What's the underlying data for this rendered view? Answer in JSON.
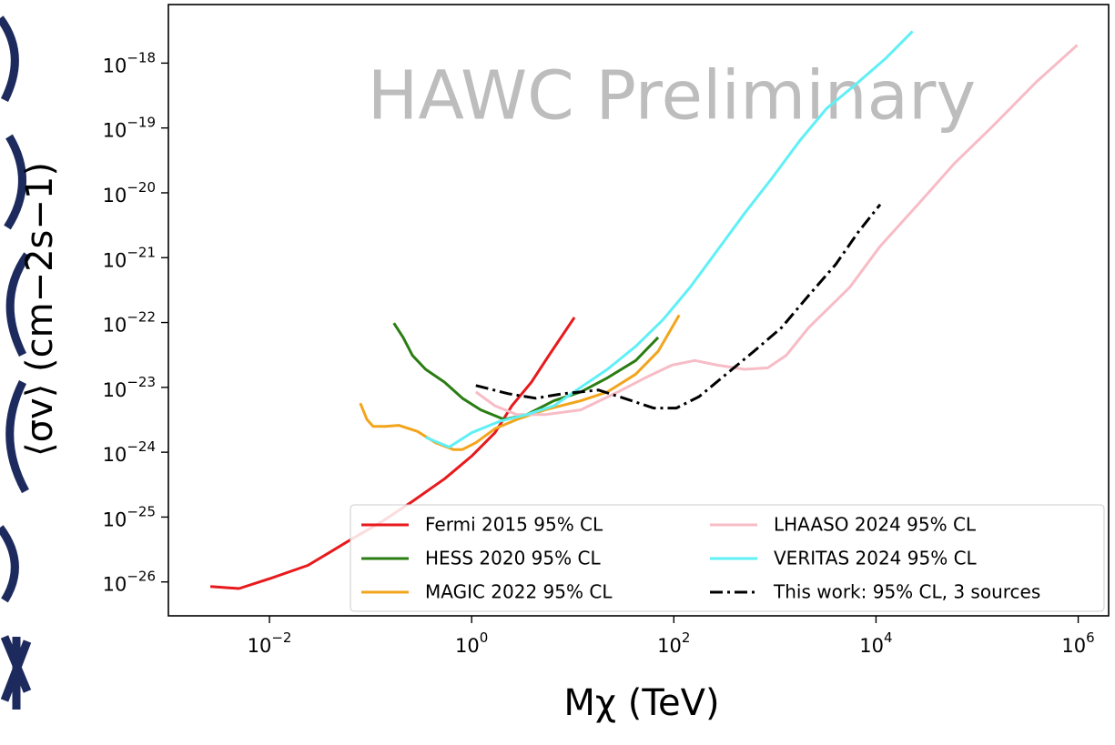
{
  "chart_data": {
    "type": "line",
    "annotation": "HAWC Preliminary",
    "xlabel": "Mχ (TeV)",
    "ylabel": "⟨σv⟩ (cm−2s−1)",
    "xscale": "log",
    "yscale": "log",
    "xlim": [
      0.001,
      2000000
    ],
    "ylim": [
      3e-27,
      8e-18
    ],
    "xticks": [
      {
        "value": 0.01,
        "label": "10−2"
      },
      {
        "value": 1,
        "label": "100"
      },
      {
        "value": 100,
        "label": "102"
      },
      {
        "value": 10000,
        "label": "104"
      },
      {
        "value": 1000000,
        "label": "106"
      }
    ],
    "yticks": [
      {
        "value": 1e-26,
        "label": "10−26"
      },
      {
        "value": 1e-25,
        "label": "10−25"
      },
      {
        "value": 1e-24,
        "label": "10−24"
      },
      {
        "value": 1e-23,
        "label": "10−23"
      },
      {
        "value": 1e-22,
        "label": "10−22"
      },
      {
        "value": 1e-21,
        "label": "10−21"
      },
      {
        "value": 1e-20,
        "label": "10−20"
      },
      {
        "value": 1e-19,
        "label": "10−19"
      },
      {
        "value": 1e-18,
        "label": "10−18"
      }
    ],
    "legend": "lower right",
    "series": [
      {
        "name": "Fermi 2015 95% CL",
        "color": "#e8191c",
        "dash": "solid",
        "x": [
          0.0026,
          0.005,
          0.0105,
          0.024,
          0.04,
          0.067,
          0.126,
          0.26,
          0.54,
          1,
          1.7,
          2.5,
          3.9,
          5.8,
          10.4
        ],
        "values": [
          8.5e-27,
          7.9e-27,
          1.15e-26,
          1.8e-26,
          2.9e-26,
          4.7e-26,
          8.3e-26,
          1.75e-25,
          3.9e-25,
          8.7e-25,
          2e-24,
          5.2e-24,
          1.2e-23,
          3.1e-23,
          1.2e-22
        ]
      },
      {
        "name": "HESS 2020 95% CL",
        "color": "#2a7d12",
        "dash": "solid",
        "x": [
          0.17,
          0.21,
          0.26,
          0.35,
          0.54,
          0.81,
          1.23,
          2.1,
          3.5,
          6.5,
          12,
          22,
          42,
          70
        ],
        "values": [
          9.8e-23,
          5.9e-23,
          3.1e-23,
          1.9e-23,
          1.2e-23,
          6.8e-24,
          4.5e-24,
          3.2e-24,
          3.8e-24,
          6.2e-24,
          8.5e-24,
          1.4e-23,
          2.6e-23,
          5.9e-23
        ]
      },
      {
        "name": "MAGIC 2022 95% CL",
        "color": "#f2a51c",
        "dash": "solid",
        "x": [
          0.079,
          0.092,
          0.106,
          0.14,
          0.19,
          0.29,
          0.44,
          0.66,
          0.81,
          1.1,
          1.7,
          2.8,
          5.3,
          12,
          22,
          42,
          70,
          113
        ],
        "values": [
          5.7e-24,
          3.2e-24,
          2.5e-24,
          2.5e-24,
          2.6e-24,
          2.1e-24,
          1.4e-24,
          1.1e-24,
          1.1e-24,
          1.4e-24,
          2.3e-24,
          3.2e-24,
          4.5e-24,
          6.2e-24,
          8.5e-24,
          1.6e-23,
          3.6e-23,
          1.3e-22
        ]
      },
      {
        "name": "LHAASO 2024 95% CL",
        "color": "#f7bcc6",
        "dash": "solid",
        "x": [
          1.1,
          1.7,
          2.8,
          5.3,
          12,
          28,
          52,
          96,
          161,
          270,
          500,
          850,
          1290,
          2150,
          5500,
          11000,
          26000,
          59000,
          137000,
          390000,
          980000
        ],
        "values": [
          8.5e-24,
          5.2e-24,
          3.8e-24,
          3.8e-24,
          4.5e-24,
          8.5e-24,
          1.4e-23,
          2.2e-23,
          2.6e-23,
          2.2e-23,
          1.9e-23,
          2e-23,
          3.1e-23,
          8.3e-23,
          3.5e-22,
          1.5e-21,
          6.6e-21,
          2.8e-20,
          1e-19,
          5.2e-19,
          1.9e-18
        ]
      },
      {
        "name": "VERITAS 2024 95% CL",
        "color": "#5ff0f5",
        "dash": "solid",
        "x": [
          0.35,
          0.6,
          1,
          1.9,
          3.5,
          6.5,
          12,
          22,
          42,
          78,
          145,
          270,
          500,
          940,
          1750,
          3250,
          6100,
          12600,
          23000
        ],
        "values": [
          1.7e-24,
          1.2e-24,
          2e-24,
          3e-24,
          3.8e-24,
          5.2e-24,
          1e-23,
          1.9e-23,
          4.3e-23,
          1.1e-22,
          3.5e-22,
          1.3e-21,
          4.8e-21,
          1.7e-20,
          6.3e-20,
          2e-19,
          4.5e-19,
          1.2e-18,
          3.1e-18
        ]
      },
      {
        "name": "This work: 95% CL, 3 sources",
        "color": "#000000",
        "dash": "dashdot",
        "x": [
          1.1,
          2.3,
          4.3,
          8,
          18,
          34,
          63,
          106,
          178,
          330,
          620,
          1160,
          2150,
          4000,
          6700,
          11000
        ],
        "values": [
          1.07e-23,
          8e-24,
          6.8e-24,
          8e-24,
          9.1e-24,
          6.6e-24,
          4.8e-24,
          4.8e-24,
          7.2e-24,
          1.6e-23,
          3.6e-23,
          8.3e-23,
          2.6e-22,
          7.9e-22,
          2.5e-21,
          6.6e-21
        ]
      }
    ]
  }
}
